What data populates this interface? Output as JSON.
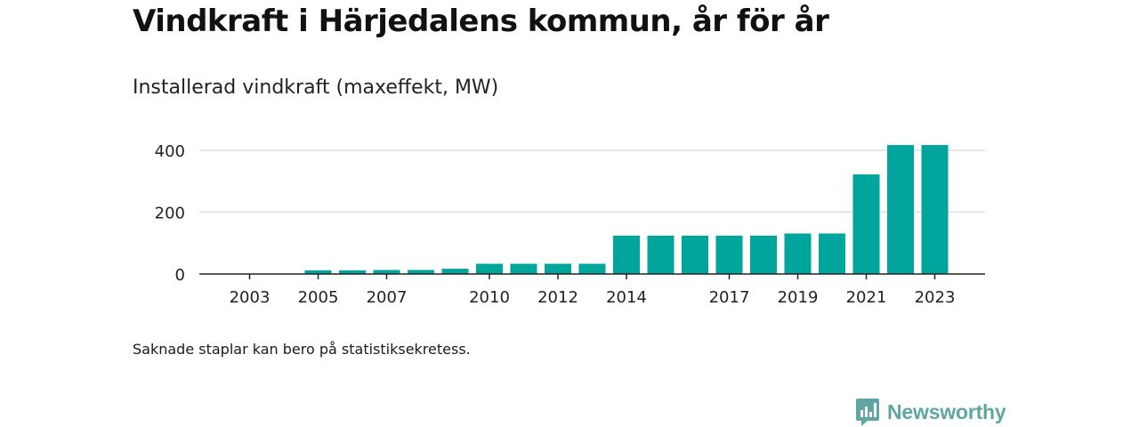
{
  "header": {
    "title": "Vindkraft i Härjedalens kommun, år för år",
    "subtitle": "Installerad vindkraft (maxeffekt, MW)"
  },
  "footnote": "Saknade staplar kan bero på statistiksekretess.",
  "brand": {
    "name": "Newsworthy",
    "color": "#5fa6a2"
  },
  "chart_data": {
    "type": "bar",
    "categories": [
      "2002",
      "2003",
      "2004",
      "2005",
      "2006",
      "2007",
      "2008",
      "2009",
      "2010",
      "2011",
      "2012",
      "2013",
      "2014",
      "2015",
      "2016",
      "2017",
      "2018",
      "2019",
      "2020",
      "2021",
      "2022",
      "2023"
    ],
    "values": [
      null,
      null,
      null,
      12,
      12,
      13,
      13,
      17,
      33,
      33,
      33,
      33,
      124,
      124,
      124,
      124,
      124,
      131,
      131,
      322,
      417,
      417
    ],
    "tick_labels": [
      "2003",
      "2005",
      "2007",
      "2010",
      "2012",
      "2014",
      "2017",
      "2019",
      "2021",
      "2023"
    ],
    "y_ticks": [
      0,
      200,
      400
    ],
    "ylim": [
      0,
      420
    ],
    "xlabel": "",
    "ylabel": "",
    "grid": true,
    "bar_color": "#00a69c",
    "grid_color": "#dddddd",
    "axis_color": "#222222"
  }
}
